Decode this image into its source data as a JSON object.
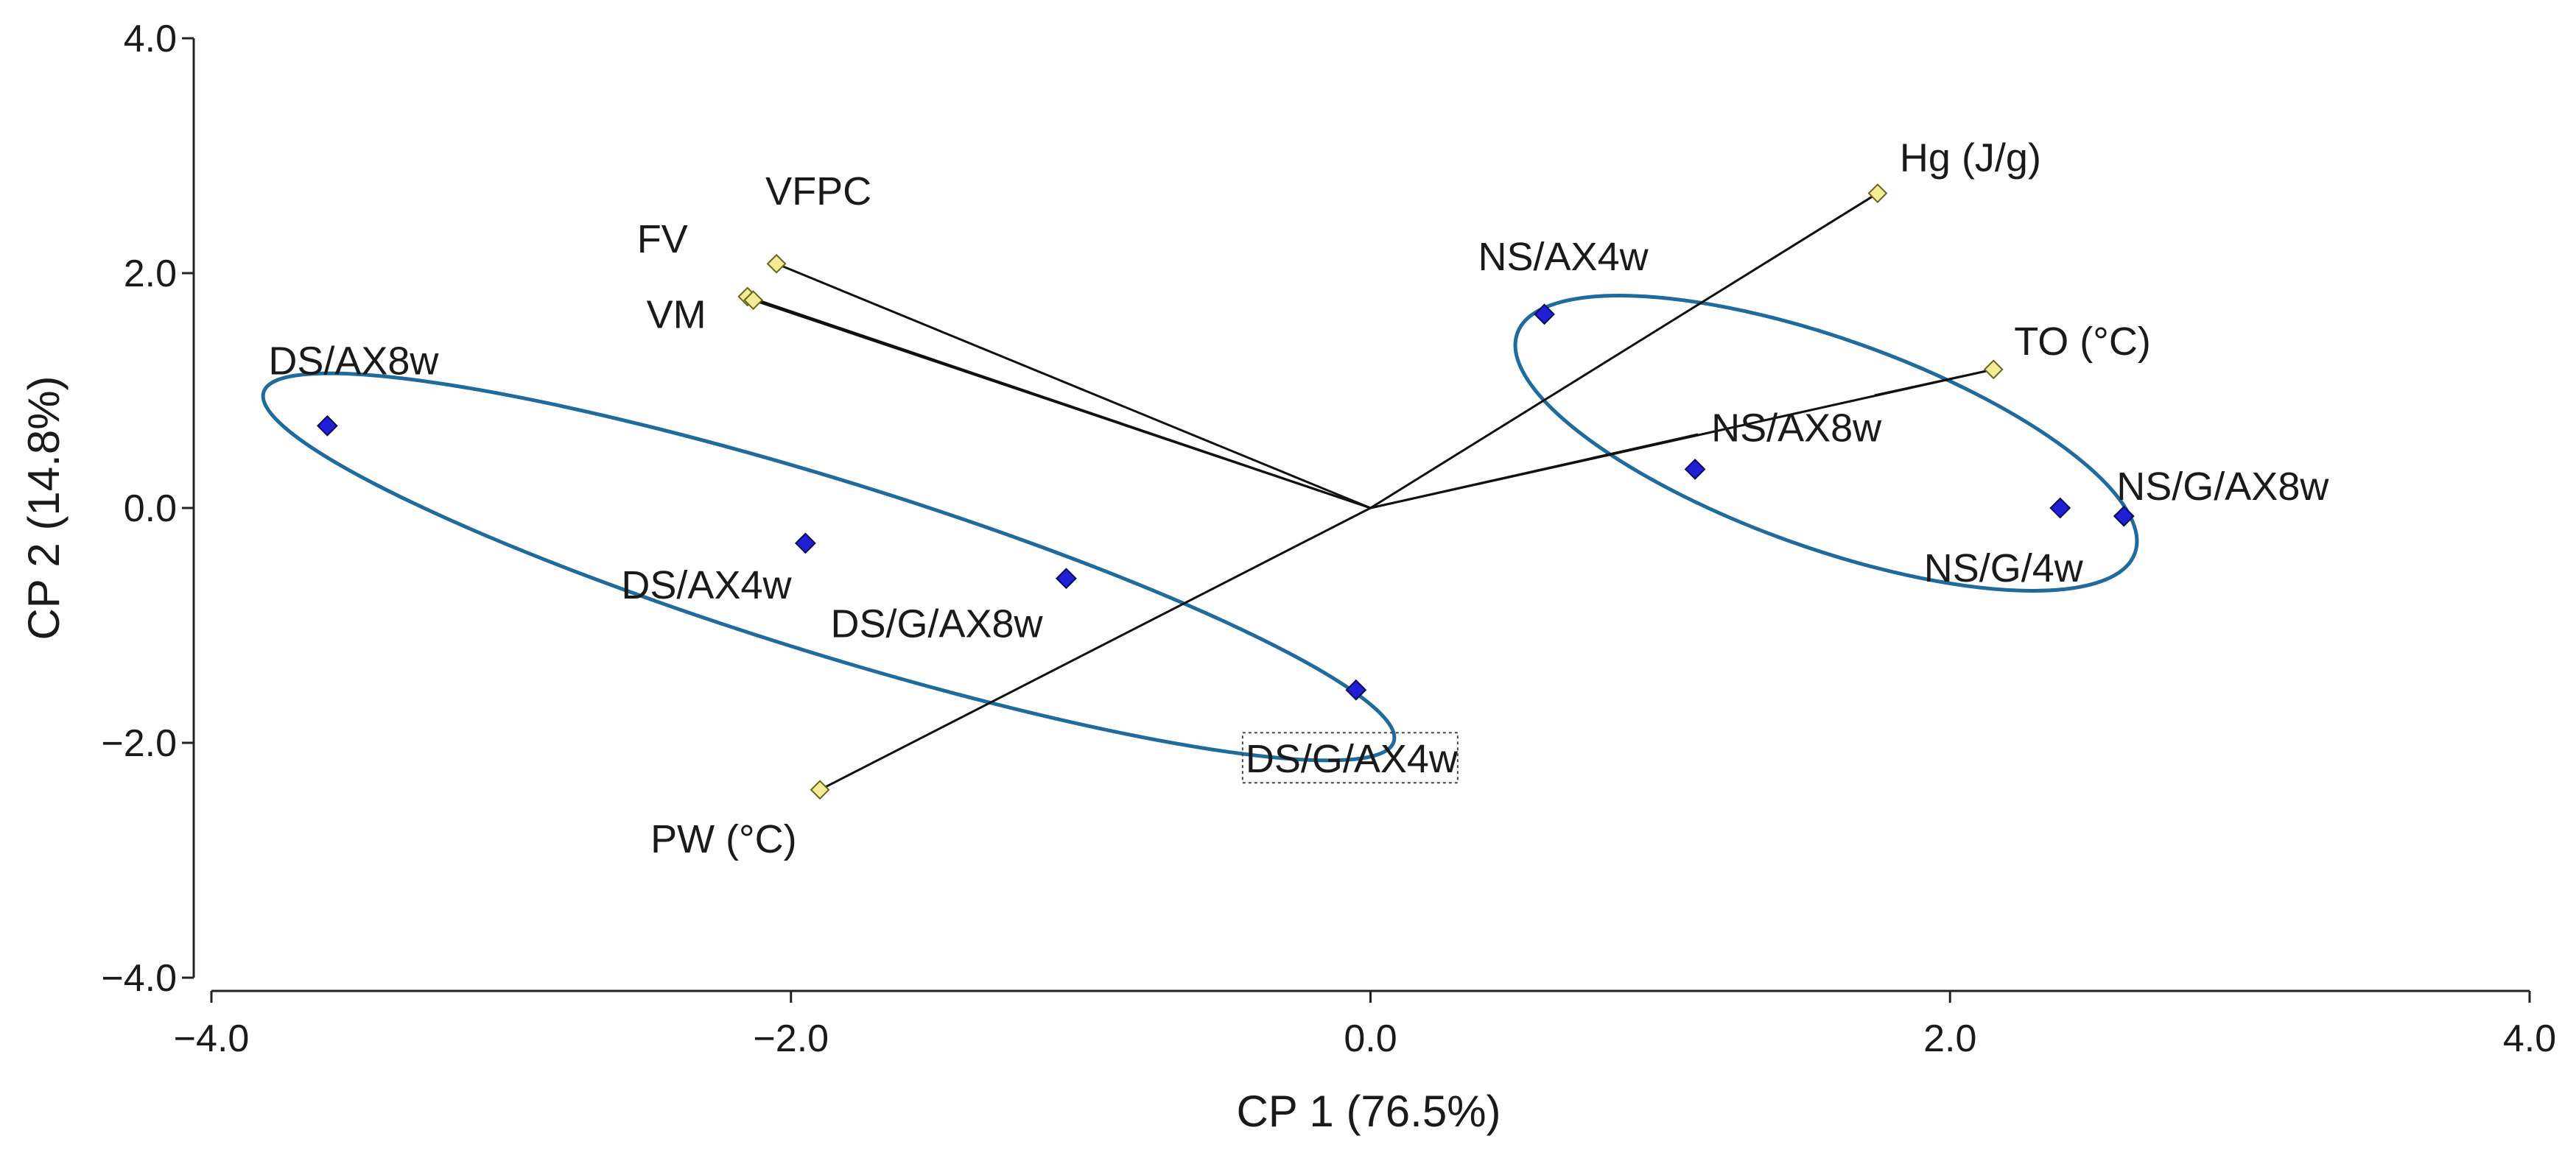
{
  "chart_data": {
    "type": "scatter",
    "subtype": "pca-biplot",
    "title": "",
    "xlabel": "CP 1 (76.5%)",
    "ylabel": "CP 2 (14.8%)",
    "xlim": [
      -4.0,
      4.0
    ],
    "ylim": [
      -4.0,
      4.0
    ],
    "xticks": [
      -4.0,
      -2.0,
      0.0,
      2.0,
      4.0
    ],
    "yticks": [
      -4.0,
      -2.0,
      0.0,
      2.0,
      4.0
    ],
    "xtick_labels": [
      "−4.0",
      "−2.0",
      "0.0",
      "2.0",
      "4.0"
    ],
    "ytick_labels": [
      "−4.0",
      "−2.0",
      "0.0",
      "2.0",
      "4.0"
    ],
    "grid": false,
    "colors": {
      "sample_marker": "#1f1fd6",
      "variable_marker": "#f3ec96",
      "ellipse": "#1f6b9e",
      "loading_line": "#111111"
    },
    "samples": [
      {
        "label": "DS/AX8w",
        "x": -3.6,
        "y": 0.7
      },
      {
        "label": "DS/AX4w",
        "x": -1.95,
        "y": -0.3
      },
      {
        "label": "DS/G/AX8w",
        "x": -1.05,
        "y": -0.6
      },
      {
        "label": "DS/G/AX4w",
        "x": -0.05,
        "y": -1.55,
        "boxed": true
      },
      {
        "label": "NS/AX4w",
        "x": 0.6,
        "y": 1.65
      },
      {
        "label": "NS/AX8w",
        "x": 1.12,
        "y": 0.33
      },
      {
        "label": "NS/G/4w",
        "x": 2.38,
        "y": 0.0
      },
      {
        "label": "NS/G/AX8w",
        "x": 2.6,
        "y": -0.07
      }
    ],
    "variables": [
      {
        "label": "Hg (J/g)",
        "x": 1.75,
        "y": 2.68
      },
      {
        "label": "TO (°C)",
        "x": 2.15,
        "y": 1.18
      },
      {
        "label": "VFPC",
        "x": -2.05,
        "y": 2.08
      },
      {
        "label": "FV",
        "x": -2.15,
        "y": 1.8
      },
      {
        "label": "VM",
        "x": -2.13,
        "y": 1.77
      },
      {
        "label": "PW (°C)",
        "x": -1.9,
        "y": -2.4
      }
    ],
    "groups": [
      {
        "name": "DS",
        "members": [
          "DS/AX8w",
          "DS/AX4w",
          "DS/G/AX8w",
          "DS/G/AX4w"
        ]
      },
      {
        "name": "NS",
        "members": [
          "NS/AX4w",
          "NS/AX8w",
          "NS/G/4w",
          "NS/G/AX8w"
        ]
      }
    ]
  }
}
